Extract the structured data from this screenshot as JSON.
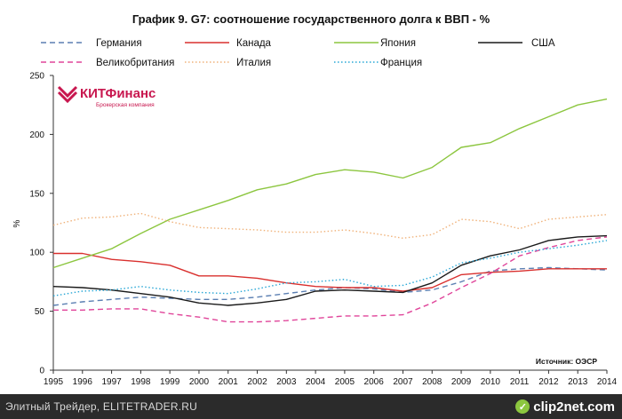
{
  "chart_data": {
    "type": "line",
    "title": "График 9. G7: соотношение государственного долга к ВВП - %",
    "ylabel": "%",
    "xlabel": "",
    "x": [
      "1995",
      "1996",
      "1997",
      "1998",
      "1999",
      "2000",
      "2001",
      "2002",
      "2003",
      "2004",
      "2005",
      "2006",
      "2007",
      "2008",
      "2009",
      "2010",
      "2011",
      "2012",
      "2013",
      "2014"
    ],
    "yticks": [
      "0",
      "50",
      "100",
      "150",
      "200",
      "250"
    ],
    "ylim": [
      0,
      250
    ],
    "source_note": "Источник: ОЭСР",
    "series": [
      {
        "name": "Германия",
        "color": "#5b7fb2",
        "dash": "dashed",
        "values": [
          55,
          58,
          60,
          62,
          61,
          60,
          60,
          62,
          65,
          68,
          70,
          69,
          66,
          68,
          75,
          84,
          86,
          87,
          86,
          85
        ]
      },
      {
        "name": "Канада",
        "color": "#d9302e",
        "dash": "solid",
        "values": [
          99,
          99,
          94,
          92,
          89,
          80,
          80,
          78,
          74,
          71,
          70,
          70,
          67,
          70,
          81,
          83,
          84,
          86,
          86,
          86
        ]
      },
      {
        "name": "Япония",
        "color": "#8cc63f",
        "dash": "solid",
        "values": [
          87,
          95,
          103,
          116,
          128,
          136,
          144,
          153,
          158,
          166,
          170,
          168,
          163,
          172,
          189,
          193,
          205,
          215,
          225,
          230
        ]
      },
      {
        "name": "США",
        "color": "#1a1a1a",
        "dash": "solid",
        "values": [
          71,
          70,
          68,
          65,
          62,
          57,
          55,
          57,
          60,
          67,
          68,
          67,
          66,
          74,
          89,
          97,
          102,
          110,
          113,
          114
        ]
      },
      {
        "name": "Великобритания",
        "color": "#e0459a",
        "dash": "dashed",
        "values": [
          51,
          51,
          52,
          52,
          48,
          45,
          41,
          41,
          42,
          44,
          46,
          46,
          47,
          57,
          70,
          82,
          97,
          104,
          110,
          113
        ]
      },
      {
        "name": "Италия",
        "color": "#f0b27a",
        "dash": "dotted",
        "values": [
          123,
          129,
          130,
          133,
          126,
          121,
          120,
          119,
          117,
          117,
          119,
          116,
          112,
          115,
          128,
          126,
          120,
          128,
          130,
          132
        ]
      },
      {
        "name": "Франция",
        "color": "#29a7d6",
        "dash": "dotted",
        "values": [
          63,
          67,
          68,
          71,
          68,
          66,
          65,
          69,
          74,
          75,
          77,
          71,
          72,
          79,
          91,
          95,
          100,
          103,
          106,
          110
        ]
      }
    ]
  },
  "brand": {
    "name": "КИТФинанс",
    "sub": "Брокерская компания",
    "color": "#c8174f"
  },
  "footer": {
    "text": "Элитный Трейдер, ELITETRADER.RU",
    "logo_text": "clip2net.com"
  }
}
